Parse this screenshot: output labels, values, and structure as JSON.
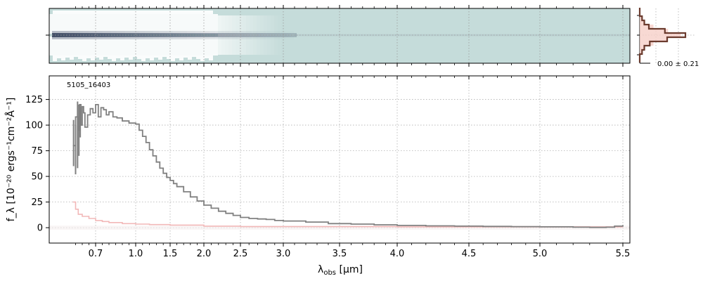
{
  "chart_data": [
    {
      "type": "heatmap",
      "panel": "2d-spectrum",
      "background_color": "#c5dcda",
      "trace_color": "#3a4660",
      "edge_color": "#ffffff"
    },
    {
      "type": "line",
      "panel": "1d-spectrum",
      "annotation": "5105_16403",
      "xlabel_main": "λ",
      "xlabel_sub": "obs",
      "xlabel_unit": " [μm]",
      "ylabel": "f_λ [10⁻²⁰ ergs⁻¹cm⁻²Å⁻¹]",
      "ylim": [
        -15,
        148
      ],
      "yticks": [
        0,
        25,
        50,
        75,
        100,
        125
      ],
      "xticks": [
        0.7,
        1.0,
        1.5,
        2.0,
        2.5,
        3.0,
        3.5,
        4.0,
        4.5,
        5.0,
        5.5
      ],
      "xtick_labels": [
        "0.7",
        "1.0",
        "1.5",
        "2.0",
        "2.5",
        "3.0",
        "3.5",
        "4.0",
        "4.5",
        "5.0",
        "5.5"
      ],
      "grid": true,
      "series": [
        {
          "role": "flux",
          "color": "#808080",
          "x": [
            0.53,
            0.55,
            0.57,
            0.58,
            0.59,
            0.6,
            0.61,
            0.62,
            0.64,
            0.66,
            0.68,
            0.7,
            0.72,
            0.74,
            0.76,
            0.78,
            0.8,
            0.83,
            0.86,
            0.9,
            0.95,
            1.0,
            1.05,
            1.1,
            1.15,
            1.2,
            1.25,
            1.3,
            1.35,
            1.4,
            1.45,
            1.5,
            1.55,
            1.6,
            1.7,
            1.8,
            1.9,
            2.0,
            2.1,
            2.2,
            2.3,
            2.4,
            2.5,
            2.6,
            2.7,
            2.8,
            2.9,
            3.0,
            3.2,
            3.4,
            3.6,
            3.8,
            4.0,
            4.2,
            4.4,
            4.6,
            4.8,
            5.0,
            5.2,
            5.3,
            5.4,
            5.45,
            5.5
          ],
          "y": [
            80,
            108,
            95,
            120,
            100,
            118,
            112,
            98,
            110,
            116,
            112,
            120,
            108,
            117,
            115,
            110,
            113,
            108,
            107,
            104,
            102,
            101,
            95,
            89,
            83,
            76,
            70,
            64,
            58,
            53,
            49,
            46,
            43,
            40,
            35,
            30,
            26,
            22,
            19,
            16,
            14,
            12,
            10,
            9,
            8.5,
            8,
            7,
            6.5,
            5.5,
            4,
            3.5,
            2.8,
            2.2,
            1.8,
            1.5,
            1.2,
            1,
            0.8,
            0.5,
            0.3,
            0.5,
            1.5,
            2.5
          ]
        },
        {
          "role": "error",
          "color": "#f2b8b8",
          "x": [
            0.53,
            0.55,
            0.57,
            0.6,
            0.65,
            0.7,
            0.75,
            0.8,
            0.9,
            1.0,
            1.2,
            1.5,
            2.0,
            2.5,
            3.0,
            4.0,
            5.0,
            5.5
          ],
          "y": [
            25,
            18,
            13,
            11,
            9,
            7,
            6,
            5,
            4,
            3.5,
            3,
            2.5,
            1.5,
            1,
            1,
            0.8,
            0.8,
            0.8
          ]
        }
      ]
    },
    {
      "type": "line",
      "panel": "cross-dispersion-profile",
      "annotation": "0.00 ± 0.21",
      "line_color": "#6b3b2e",
      "fill_color": "#f6cfc8",
      "profile": [
        0,
        0,
        0.05,
        0.1,
        0.2,
        0.55,
        1.0,
        0.6,
        0.22,
        0.1,
        0.05,
        0,
        0
      ],
      "model": [
        0,
        0,
        0.04,
        0.12,
        0.3,
        0.62,
        0.9,
        0.62,
        0.3,
        0.12,
        0.04,
        0,
        0
      ]
    }
  ]
}
